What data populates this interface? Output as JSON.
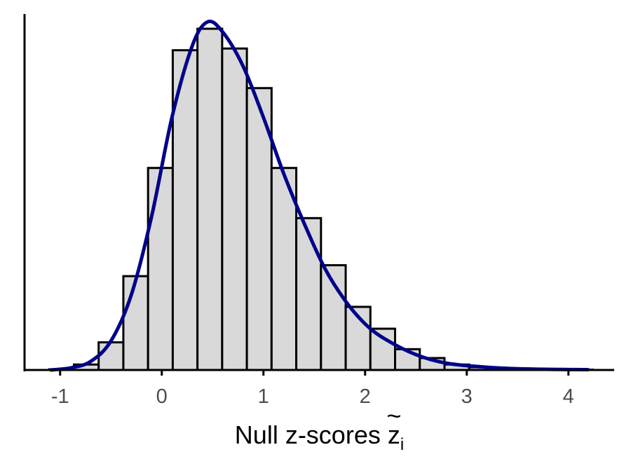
{
  "chart_data": {
    "type": "bar",
    "title": "",
    "xlabel": "Null z-scores z",
    "xlabel_parts": {
      "text": "Null z-scores ",
      "symbol": "z",
      "accent": "~",
      "subscript": "i"
    },
    "ylabel": "",
    "xlim": [
      -1.35,
      4.45
    ],
    "ylim": [
      0,
      1.0
    ],
    "x_ticks": [
      -1,
      0,
      1,
      2,
      3,
      4
    ],
    "x_tick_labels": [
      "-1",
      "0",
      "1",
      "2",
      "3",
      "4"
    ],
    "y_axis_ticks_shown": false,
    "grid": false,
    "bin_width": 0.243,
    "bins": [
      {
        "x0": -1.107,
        "x1": -0.864,
        "value": 0.002
      },
      {
        "x0": -0.864,
        "x1": -0.621,
        "value": 0.016
      },
      {
        "x0": -0.621,
        "x1": -0.378,
        "value": 0.081
      },
      {
        "x0": -0.378,
        "x1": -0.135,
        "value": 0.275
      },
      {
        "x0": -0.135,
        "x1": 0.108,
        "value": 0.592
      },
      {
        "x0": 0.108,
        "x1": 0.351,
        "value": 0.937
      },
      {
        "x0": 0.351,
        "x1": 0.594,
        "value": 1.0
      },
      {
        "x0": 0.594,
        "x1": 0.837,
        "value": 0.942
      },
      {
        "x0": 0.837,
        "x1": 1.08,
        "value": 0.826
      },
      {
        "x0": 1.08,
        "x1": 1.323,
        "value": 0.592
      },
      {
        "x0": 1.323,
        "x1": 1.566,
        "value": 0.445
      },
      {
        "x0": 1.566,
        "x1": 1.809,
        "value": 0.307
      },
      {
        "x0": 1.809,
        "x1": 2.052,
        "value": 0.185
      },
      {
        "x0": 2.052,
        "x1": 2.295,
        "value": 0.121
      },
      {
        "x0": 2.295,
        "x1": 2.538,
        "value": 0.061
      },
      {
        "x0": 2.538,
        "x1": 2.781,
        "value": 0.035
      },
      {
        "x0": 2.781,
        "x1": 3.024,
        "value": 0.016
      },
      {
        "x0": 3.024,
        "x1": 3.267,
        "value": 0.008
      },
      {
        "x0": 3.267,
        "x1": 3.51,
        "value": 0.004
      },
      {
        "x0": 3.51,
        "x1": 3.753,
        "value": 0.002
      },
      {
        "x0": 3.753,
        "x1": 3.996,
        "value": 0.001
      },
      {
        "x0": 3.996,
        "x1": 4.239,
        "value": 0.001
      }
    ],
    "series": [
      {
        "type": "line",
        "color": "#00008b",
        "x": [
          -1.1,
          -0.9,
          -0.7,
          -0.5,
          -0.3,
          -0.1,
          0.1,
          0.3,
          0.45,
          0.6,
          0.8,
          1.0,
          1.2,
          1.4,
          1.6,
          1.8,
          2.0,
          2.2,
          2.5,
          2.8,
          3.2,
          3.6,
          4.2
        ],
        "y": [
          0.0,
          0.006,
          0.025,
          0.085,
          0.22,
          0.45,
          0.74,
          0.95,
          1.02,
          0.99,
          0.89,
          0.74,
          0.575,
          0.43,
          0.3,
          0.205,
          0.135,
          0.09,
          0.045,
          0.02,
          0.008,
          0.003,
          0.001
        ]
      }
    ],
    "colors": {
      "bar_fill": "#d9d9d9",
      "bar_stroke": "#000000",
      "density_line": "#00008b",
      "axis": "#000000",
      "tick_label": "#4d4d4d"
    }
  }
}
